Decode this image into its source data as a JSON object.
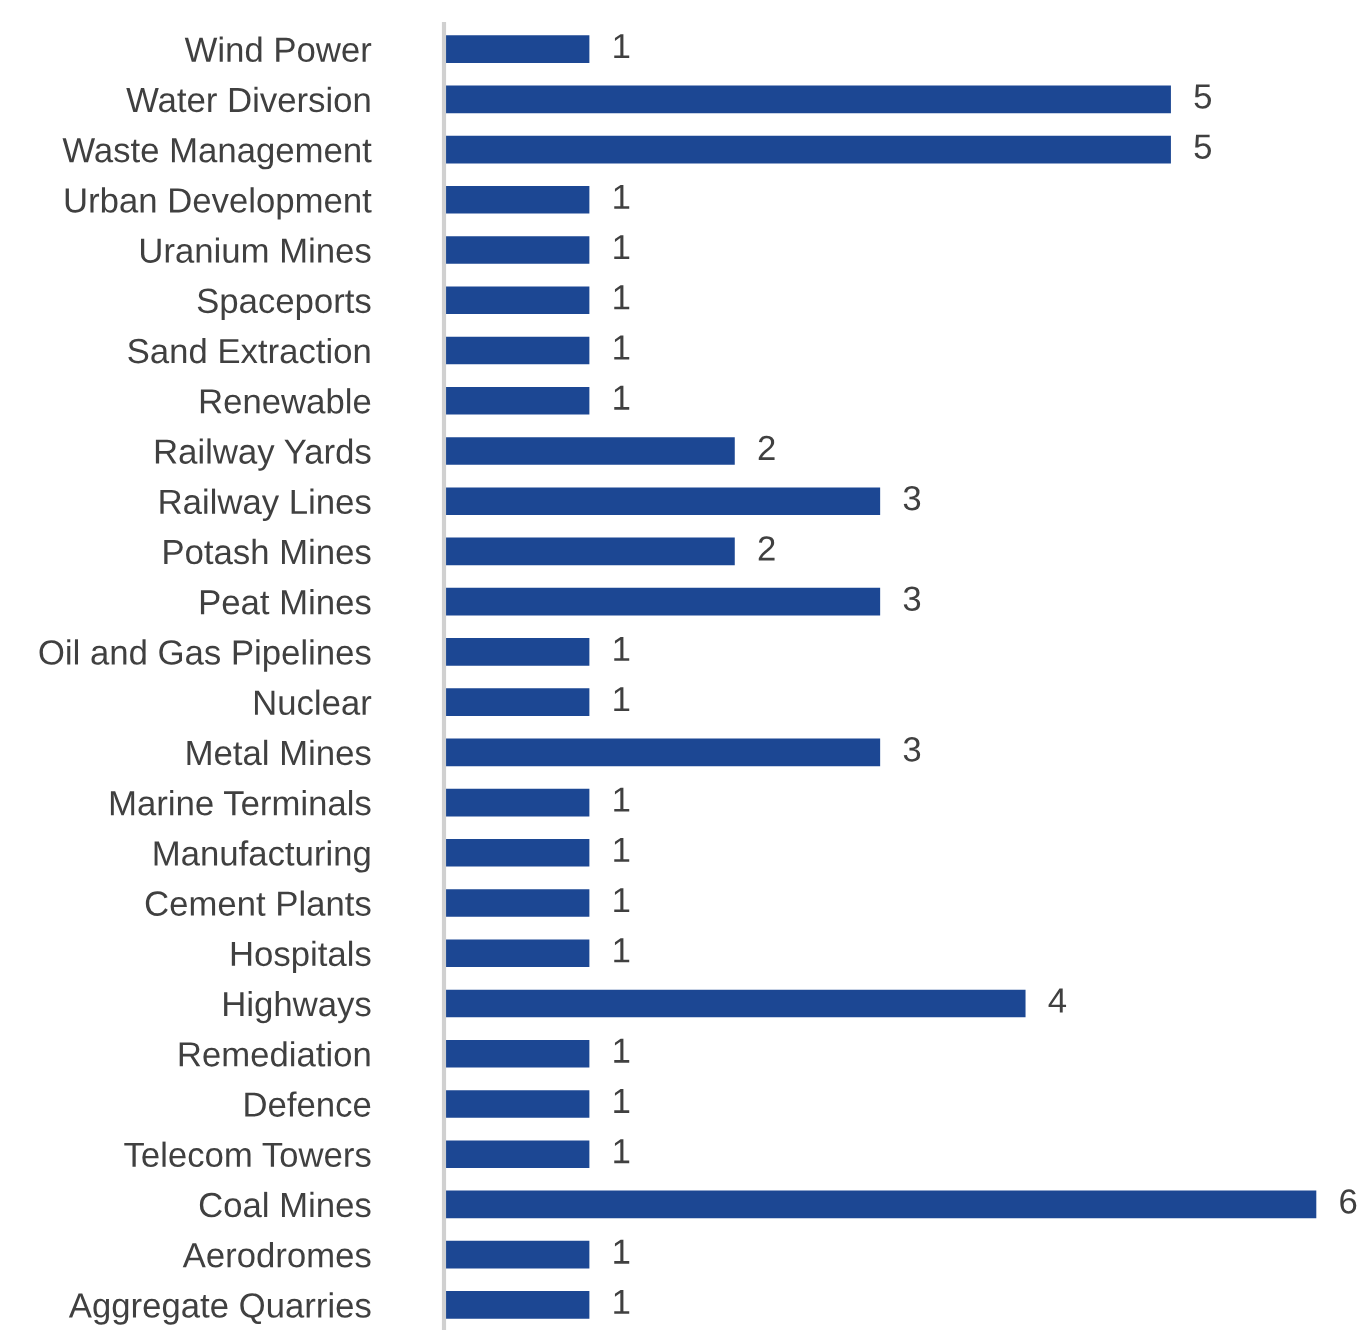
{
  "chart_data": {
    "type": "bar",
    "orientation": "horizontal",
    "categories": [
      "Wind Power",
      "Water Diversion",
      "Waste Management",
      "Urban Development",
      "Uranium Mines",
      "Spaceports",
      "Sand Extraction",
      "Renewable",
      "Railway Yards",
      "Railway Lines",
      "Potash Mines",
      "Peat Mines",
      "Oil and Gas Pipelines",
      "Nuclear",
      "Metal Mines",
      "Marine Terminals",
      "Manufacturing",
      "Cement Plants",
      "Hospitals",
      "Highways",
      "Remediation",
      "Defence",
      "Telecom Towers",
      "Coal Mines",
      "Aerodromes",
      "Aggregate Quarries"
    ],
    "values": [
      1,
      5,
      5,
      1,
      1,
      1,
      1,
      1,
      2,
      3,
      2,
      3,
      1,
      1,
      3,
      1,
      1,
      1,
      1,
      4,
      1,
      1,
      1,
      6,
      1,
      1
    ],
    "color": "#1c4793",
    "data_labels": true,
    "tick_labels": "y",
    "grid": false,
    "legend": false
  }
}
